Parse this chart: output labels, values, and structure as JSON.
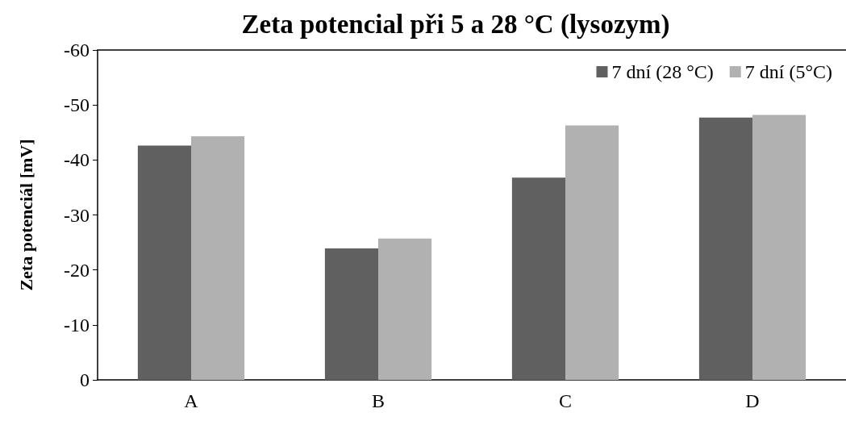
{
  "chart_data": {
    "type": "bar",
    "title": "Zeta potencial při 5 a 28 °C (lysozym)",
    "ylabel": "Zeta potenciál [mV]",
    "categories": [
      "A",
      "B",
      "C",
      "D"
    ],
    "series": [
      {
        "name": "7 dní (28 °C)",
        "color": "#606060",
        "values": [
          -42.6,
          -23.9,
          -36.8,
          -47.7
        ]
      },
      {
        "name": "7 dní (5°C)",
        "color": "#b1b1b1",
        "values": [
          -44.3,
          -25.7,
          -46.3,
          -48.2
        ]
      }
    ],
    "ylim": [
      0,
      -60
    ],
    "yticks": [
      0,
      -10,
      -20,
      -30,
      -40,
      -50,
      -60
    ],
    "grid": false,
    "legend": "top right"
  }
}
